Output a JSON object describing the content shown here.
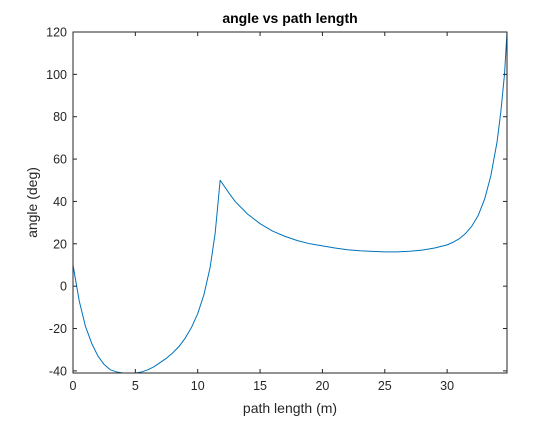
{
  "chart_data": {
    "type": "line",
    "title": "angle vs path length",
    "xlabel": "path length (m)",
    "ylabel": "angle (deg)",
    "xlim": [
      0,
      34.8
    ],
    "ylim": [
      -41,
      120
    ],
    "xticks": [
      0,
      5,
      10,
      15,
      20,
      25,
      30
    ],
    "yticks": [
      -40,
      -20,
      0,
      20,
      40,
      60,
      80,
      100,
      120
    ],
    "grid": false,
    "legend": "none",
    "series": [
      {
        "color": "#0072BD",
        "x": [
          0,
          0.5,
          1,
          1.5,
          2,
          2.5,
          3,
          3.5,
          4,
          4.5,
          5,
          5.5,
          6,
          6.5,
          7,
          7.5,
          8,
          8.5,
          9,
          9.5,
          10,
          10.5,
          11,
          11.4,
          11.8,
          12.5,
          13,
          14,
          15,
          16,
          17,
          18,
          19,
          20,
          21,
          22,
          23,
          24,
          25,
          26,
          27,
          28,
          29,
          30,
          30.5,
          31,
          31.5,
          32,
          32.5,
          33,
          33.5,
          34,
          34.3,
          34.6,
          34.8
        ],
        "y": [
          10,
          -7,
          -19,
          -27,
          -33,
          -37,
          -39.5,
          -40.5,
          -41,
          -41,
          -41,
          -40.5,
          -39.5,
          -38,
          -36,
          -34,
          -31.5,
          -28.5,
          -24.5,
          -19.5,
          -13,
          -4,
          9,
          25,
          50,
          44,
          40,
          34,
          29.5,
          26,
          23.5,
          21.5,
          20,
          19,
          18,
          17.2,
          16.7,
          16.4,
          16.2,
          16.2,
          16.5,
          17,
          18,
          19.5,
          20.8,
          22.5,
          25,
          28.5,
          33.5,
          41,
          52,
          68,
          82,
          100,
          120
        ]
      }
    ]
  }
}
